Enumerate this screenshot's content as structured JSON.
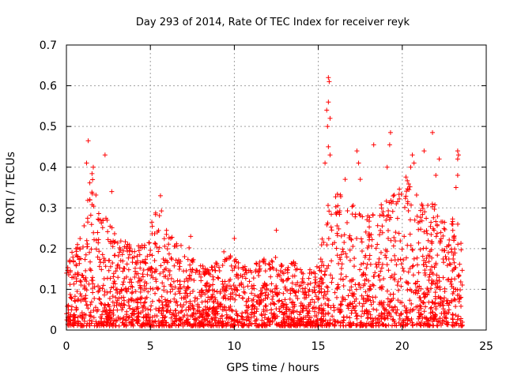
{
  "chart_data": {
    "type": "scatter",
    "title": "Day 293 of 2014, Rate Of TEC Index for receiver reyk",
    "xlabel": "GPS time / hours",
    "ylabel": "ROTI / TECUs",
    "xlim": [
      0,
      25
    ],
    "ylim": [
      0,
      0.7
    ],
    "xticks": [
      0,
      5,
      10,
      15,
      20,
      25
    ],
    "yticks": [
      0,
      0.1,
      0.2,
      0.3,
      0.4,
      0.5,
      0.6,
      0.7
    ],
    "x_tick_labels": [
      "0",
      "5",
      "10",
      "15",
      "20",
      "25"
    ],
    "y_tick_labels": [
      "0",
      "0.1",
      "0.2",
      "0.3",
      "0.4",
      "0.5",
      "0.6",
      "0.7"
    ],
    "grid": true,
    "marker": "+",
    "color": "#ff0000",
    "data_range_x": [
      0,
      23.6
    ],
    "envelope": [
      [
        0.0,
        0.18
      ],
      [
        0.5,
        0.2
      ],
      [
        1.0,
        0.24
      ],
      [
        1.5,
        0.4
      ],
      [
        2.0,
        0.3
      ],
      [
        2.5,
        0.31
      ],
      [
        3.0,
        0.22
      ],
      [
        3.5,
        0.22
      ],
      [
        4.0,
        0.2
      ],
      [
        4.5,
        0.22
      ],
      [
        5.0,
        0.26
      ],
      [
        5.5,
        0.32
      ],
      [
        6.0,
        0.25
      ],
      [
        6.5,
        0.22
      ],
      [
        7.0,
        0.21
      ],
      [
        7.5,
        0.2
      ],
      [
        8.0,
        0.16
      ],
      [
        8.5,
        0.15
      ],
      [
        9.0,
        0.17
      ],
      [
        9.5,
        0.2
      ],
      [
        10.0,
        0.18
      ],
      [
        10.5,
        0.17
      ],
      [
        11.0,
        0.16
      ],
      [
        11.5,
        0.18
      ],
      [
        12.0,
        0.17
      ],
      [
        12.5,
        0.18
      ],
      [
        13.0,
        0.15
      ],
      [
        13.5,
        0.17
      ],
      [
        14.0,
        0.16
      ],
      [
        14.5,
        0.15
      ],
      [
        15.0,
        0.18
      ],
      [
        15.5,
        0.32
      ],
      [
        16.0,
        0.36
      ],
      [
        16.5,
        0.33
      ],
      [
        17.0,
        0.31
      ],
      [
        17.5,
        0.3
      ],
      [
        18.0,
        0.28
      ],
      [
        18.5,
        0.31
      ],
      [
        19.0,
        0.33
      ],
      [
        19.5,
        0.34
      ],
      [
        20.0,
        0.37
      ],
      [
        20.5,
        0.39
      ],
      [
        21.0,
        0.34
      ],
      [
        21.5,
        0.31
      ],
      [
        22.0,
        0.31
      ],
      [
        22.5,
        0.3
      ],
      [
        23.0,
        0.28
      ],
      [
        23.5,
        0.25
      ]
    ],
    "outliers": [
      [
        1.3,
        0.465
      ],
      [
        1.2,
        0.41
      ],
      [
        1.6,
        0.4
      ],
      [
        2.3,
        0.43
      ],
      [
        2.7,
        0.34
      ],
      [
        5.6,
        0.33
      ],
      [
        7.4,
        0.23
      ],
      [
        10.0,
        0.225
      ],
      [
        12.5,
        0.245
      ],
      [
        15.6,
        0.62
      ],
      [
        15.65,
        0.61
      ],
      [
        15.6,
        0.56
      ],
      [
        15.5,
        0.54
      ],
      [
        15.7,
        0.52
      ],
      [
        15.55,
        0.5
      ],
      [
        15.6,
        0.45
      ],
      [
        15.7,
        0.43
      ],
      [
        15.4,
        0.41
      ],
      [
        16.6,
        0.37
      ],
      [
        17.3,
        0.44
      ],
      [
        17.4,
        0.41
      ],
      [
        17.5,
        0.37
      ],
      [
        18.3,
        0.455
      ],
      [
        19.3,
        0.485
      ],
      [
        19.25,
        0.455
      ],
      [
        19.1,
        0.4
      ],
      [
        20.6,
        0.43
      ],
      [
        20.7,
        0.41
      ],
      [
        20.5,
        0.4
      ],
      [
        21.3,
        0.44
      ],
      [
        21.8,
        0.485
      ],
      [
        22.2,
        0.42
      ],
      [
        22.0,
        0.38
      ],
      [
        23.3,
        0.44
      ],
      [
        23.35,
        0.43
      ],
      [
        23.3,
        0.42
      ],
      [
        23.3,
        0.38
      ],
      [
        23.2,
        0.35
      ]
    ]
  }
}
